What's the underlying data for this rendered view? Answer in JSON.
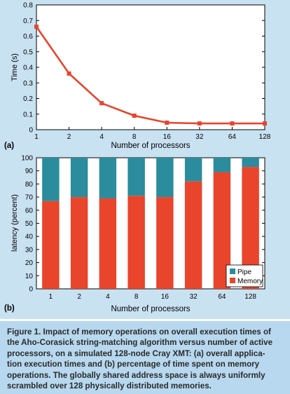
{
  "colors": {
    "line": "#e8452c",
    "memory": "#e8452c",
    "pipe": "#2a8c9c",
    "figure_bg": "#c9e2f2",
    "caption_bg": "#b7d8ee"
  },
  "chart_data": [
    {
      "type": "line",
      "panel_label": "(a)",
      "x": [
        "1",
        "2",
        "4",
        "8",
        "16",
        "32",
        "64",
        "128"
      ],
      "series": [
        {
          "values": [
            0.66,
            0.36,
            0.17,
            0.09,
            0.045,
            0.04,
            0.04,
            0.04
          ]
        }
      ],
      "xlabel": "Number of processors",
      "ylabel": "Time (s)",
      "ylim": [
        0,
        0.8
      ],
      "yticks": [
        "0",
        "0.1",
        "0.2",
        "0.3",
        "0.4",
        "0.5",
        "0.6",
        "0.7",
        "0.8"
      ],
      "grid": false
    },
    {
      "type": "bar",
      "stacked": true,
      "panel_label": "(b)",
      "categories": [
        "1",
        "2",
        "4",
        "8",
        "16",
        "32",
        "64",
        "128"
      ],
      "series": [
        {
          "name": "Memory",
          "values": [
            67,
            70,
            69,
            71,
            70,
            82,
            89,
            93
          ]
        },
        {
          "name": "Pipe",
          "values": [
            33,
            30,
            31,
            29,
            30,
            18,
            11,
            7
          ]
        }
      ],
      "xlabel": "Number of processors",
      "ylabel": "latency (percent)",
      "ylim": [
        0,
        100
      ],
      "yticks": [
        "0",
        "10",
        "20",
        "30",
        "40",
        "50",
        "60",
        "70",
        "80",
        "90",
        "100"
      ],
      "legend": "bottom-right",
      "grid": false
    }
  ],
  "caption": {
    "lines": [
      "Figure 1. Impact of memory operations on overall execution times of",
      "the Aho-Corasick string-matching algorithm versus number of active",
      "processors, on a simulated 128-node Cray XMT: (a) overall applica-",
      "tion execution times and (b) percentage of time spent on memory",
      "operations. The globally shared address space is always uniformly",
      "scrambled over 128 physically distributed memories."
    ]
  }
}
